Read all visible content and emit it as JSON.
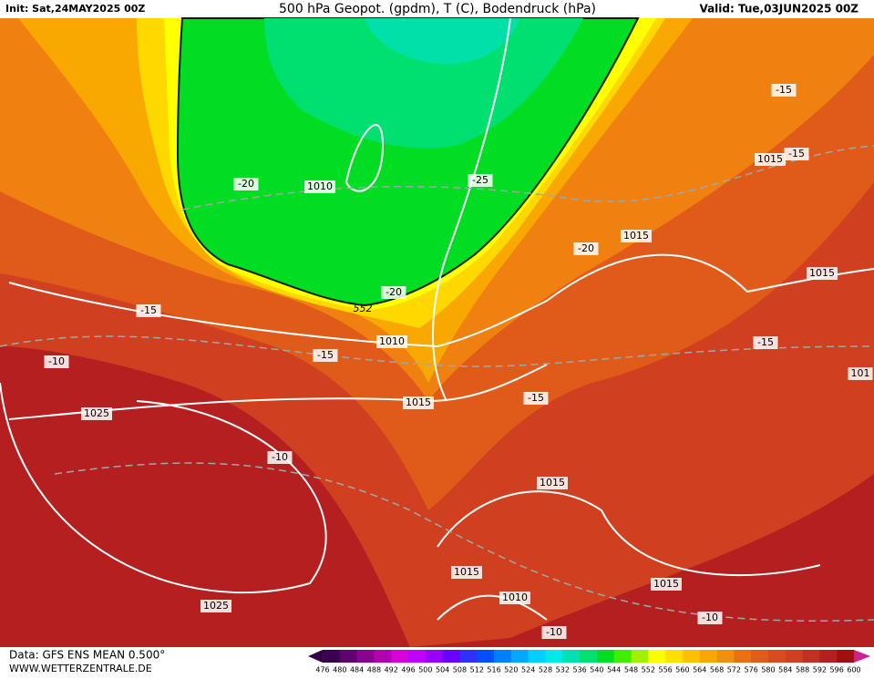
{
  "header": {
    "init": "Init: Sat,24MAY2025 00Z",
    "title": "500 hPa Geopot. (gpdm), T (C), Bodendruck (hPa)",
    "valid": "Valid: Tue,03JUN2025 00Z"
  },
  "map_labels": [
    "1010",
    "-20",
    "-25",
    "1015",
    "-15",
    "-15",
    "-20",
    "1015",
    "1015",
    "-20",
    "552",
    "-15",
    "1010",
    "-15",
    "-15",
    "-10",
    "101",
    "1015",
    "-15",
    "1025",
    "-10",
    "1015",
    "1015",
    "1010",
    "1015",
    "1025",
    "-10",
    "-10"
  ],
  "footer": {
    "data": "Data: GFS ENS MEAN 0.500°",
    "site": "WWW.WETTERZENTRALE.DE"
  },
  "colorbar": {
    "labels": [
      476,
      480,
      484,
      488,
      492,
      496,
      500,
      504,
      508,
      512,
      516,
      520,
      524,
      528,
      532,
      536,
      540,
      544,
      548,
      552,
      556,
      560,
      564,
      568,
      572,
      576,
      580,
      584,
      588,
      592,
      596,
      600
    ],
    "colors": [
      "#3c0050",
      "#600070",
      "#8a0090",
      "#b000b0",
      "#d800d8",
      "#c000ff",
      "#9a00ff",
      "#6a00ff",
      "#3030ff",
      "#0050ff",
      "#0080ff",
      "#00a8ff",
      "#00d0ff",
      "#00e8e8",
      "#00e0b0",
      "#00e070",
      "#00dd22",
      "#40ee00",
      "#a0f000",
      "#ffff00",
      "#ffe000",
      "#ffc000",
      "#f8a800",
      "#f09010",
      "#e87010",
      "#e05a1a",
      "#d84a20",
      "#d04020",
      "#c03020",
      "#b51f1f",
      "#a01010"
    ]
  }
}
